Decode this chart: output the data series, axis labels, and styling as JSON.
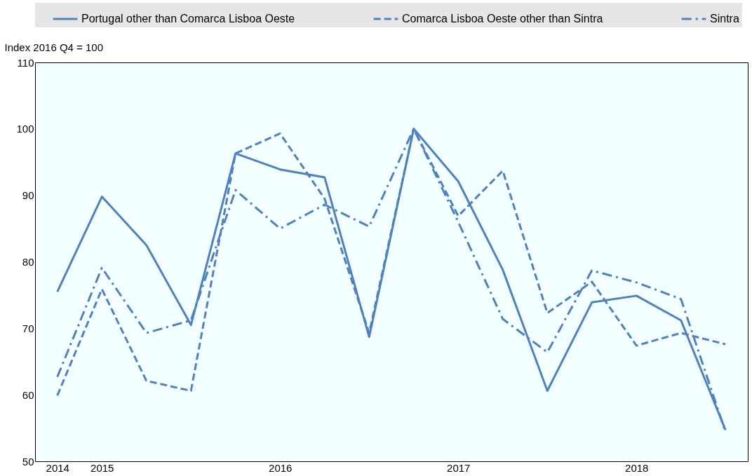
{
  "chart_data": {
    "type": "line",
    "ylabel": "Index 2016 Q4 = 100",
    "categories": [
      "2014",
      "2015",
      null,
      null,
      null,
      "2016",
      null,
      null,
      null,
      "2017",
      null,
      null,
      null,
      "2018",
      null,
      null
    ],
    "series": [
      {
        "name": "Portugal other than Comarca Lisboa Oeste",
        "color": "#4f81bd",
        "line_style": "solid",
        "values": [
          75.5,
          89.8,
          82.5,
          70.5,
          96.3,
          93.9,
          92.7,
          68.7,
          100,
          92.1,
          78.8,
          60.6,
          73.9,
          74.9,
          71.2,
          54.7
        ]
      },
      {
        "name": "Comarca Lisboa Oeste other than Sintra",
        "color": "#4f81bd",
        "line_style": "dashed",
        "values": [
          59.9,
          75.9,
          62.1,
          60.6,
          96.3,
          99.3,
          89.5,
          69.3,
          100,
          86.9,
          93.7,
          72.3,
          77,
          67.4,
          69.3,
          67.6
        ]
      },
      {
        "name": "Sintra",
        "color": "#4f81bd",
        "line_style": "dashdot",
        "values": [
          62.7,
          79.1,
          69.3,
          71.2,
          90.8,
          85,
          88.6,
          85.3,
          100,
          86,
          71.4,
          66.4,
          78.7,
          76.9,
          74.4,
          54.4
        ]
      }
    ],
    "ylim": [
      50,
      110
    ],
    "yticks": [
      50,
      60,
      70,
      80,
      90,
      100,
      110
    ],
    "grid": false,
    "legend": "top",
    "marker": "none"
  }
}
